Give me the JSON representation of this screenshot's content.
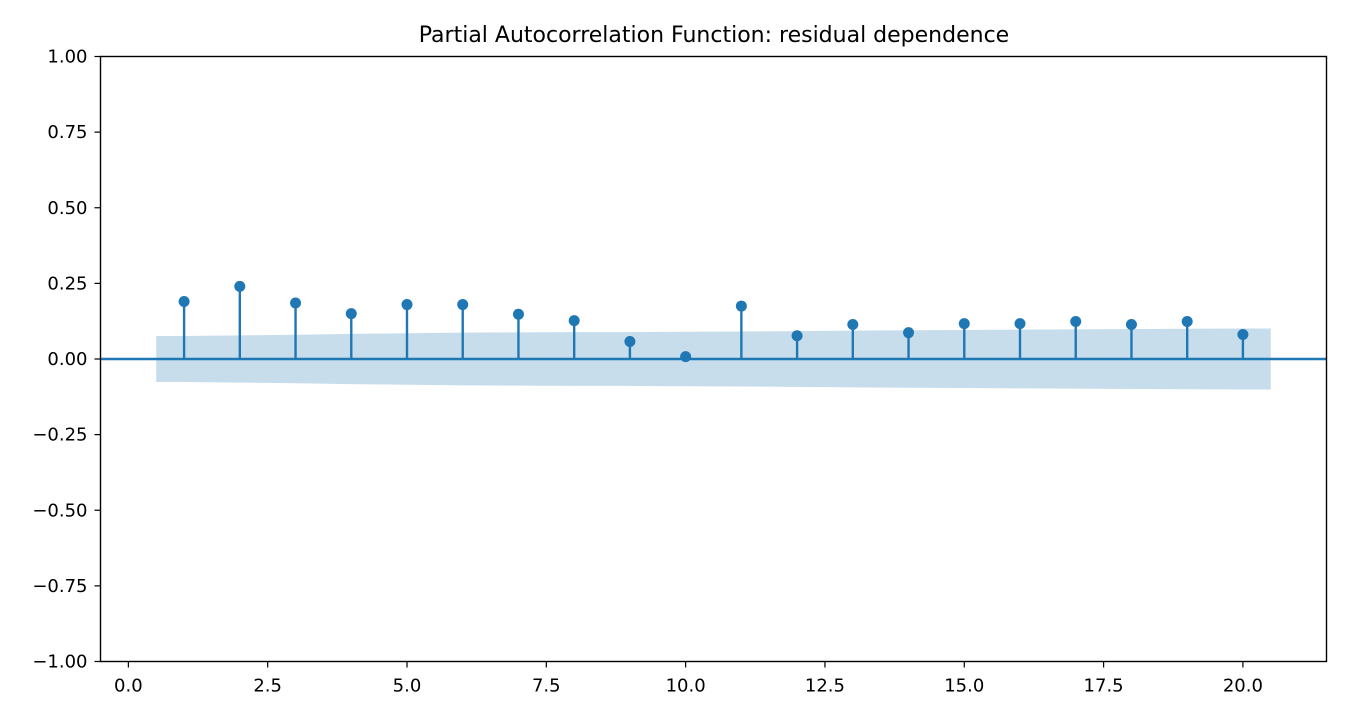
{
  "chart_data": {
    "type": "stem",
    "title": "Partial Autocorrelation Function: residual dependence",
    "xlabel": "",
    "ylabel": "",
    "xlim": [
      -0.5,
      21.5
    ],
    "ylim": [
      -1.0,
      1.0
    ],
    "x_ticks": [
      0.0,
      2.5,
      5.0,
      7.5,
      10.0,
      12.5,
      15.0,
      17.5,
      20.0
    ],
    "x_tick_labels": [
      "0.0",
      "2.5",
      "5.0",
      "7.5",
      "10.0",
      "12.5",
      "15.0",
      "17.5",
      "20.0"
    ],
    "y_ticks": [
      1.0,
      0.75,
      0.5,
      0.25,
      0.0,
      -0.25,
      -0.5,
      -0.75,
      -1.0
    ],
    "y_tick_labels": [
      "1.00",
      "0.75",
      "0.50",
      "0.25",
      "0.00",
      "−0.25",
      "−0.50",
      "−0.75",
      "−1.00"
    ],
    "lags": [
      1,
      2,
      3,
      4,
      5,
      6,
      7,
      8,
      9,
      10,
      11,
      12,
      13,
      14,
      15,
      16,
      17,
      18,
      19,
      20
    ],
    "values": [
      0.19,
      0.24,
      0.185,
      0.15,
      0.18,
      0.18,
      0.148,
      0.127,
      0.058,
      0.008,
      0.175,
      0.077,
      0.114,
      0.087,
      0.117,
      0.117,
      0.124,
      0.114,
      0.124,
      0.081
    ],
    "confidence_band": {
      "x": [
        0.5,
        1,
        2,
        3,
        4,
        5,
        6,
        7,
        8,
        9,
        10,
        11,
        12,
        13,
        14,
        15,
        16,
        17,
        18,
        19,
        20,
        20.5
      ],
      "upper": [
        0.076,
        0.076,
        0.078,
        0.08,
        0.083,
        0.085,
        0.087,
        0.088,
        0.089,
        0.089,
        0.09,
        0.091,
        0.092,
        0.094,
        0.095,
        0.096,
        0.097,
        0.098,
        0.099,
        0.1,
        0.101,
        0.101
      ],
      "lower": [
        -0.076,
        -0.076,
        -0.078,
        -0.08,
        -0.083,
        -0.085,
        -0.087,
        -0.088,
        -0.089,
        -0.089,
        -0.09,
        -0.091,
        -0.092,
        -0.094,
        -0.095,
        -0.096,
        -0.097,
        -0.098,
        -0.099,
        -0.1,
        -0.101,
        -0.101
      ]
    },
    "grid": false,
    "colors": {
      "stem": "#1f77b4",
      "band": "#1f77b4",
      "axes": "#000000"
    }
  }
}
